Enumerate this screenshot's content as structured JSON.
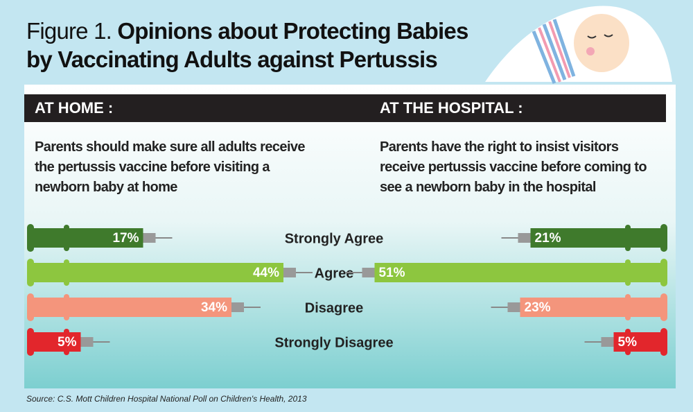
{
  "chart_data": {
    "type": "bar",
    "figure_label": "Figure 1.",
    "title": "Opinions about Protecting Babies by Vaccinating Adults against Pertussis",
    "categories": [
      "Strongly Agree",
      "Agree",
      "Disagree",
      "Strongly Disagree"
    ],
    "colors": [
      "#3f7a2c",
      "#8dc63f",
      "#f4957c",
      "#e2262c"
    ],
    "series": [
      {
        "name": "AT HOME :",
        "description": "Parents should make sure all adults receive the pertussis vaccine before visiting a newborn baby at home",
        "values": [
          17,
          44,
          34,
          5
        ],
        "value_labels": [
          "17%",
          "44%",
          "34%",
          "5%"
        ]
      },
      {
        "name": "AT THE HOSPITAL :",
        "description": "Parents have the right to insist visitors receive pertussis vaccine before coming to see a newborn baby in the hospital",
        "values": [
          21,
          51,
          23,
          5
        ],
        "value_labels": [
          "21%",
          "51%",
          "23%",
          "5%"
        ]
      }
    ],
    "source": "Source: C.S. Mott Children Hospital National Poll on Children's Health, 2013"
  }
}
